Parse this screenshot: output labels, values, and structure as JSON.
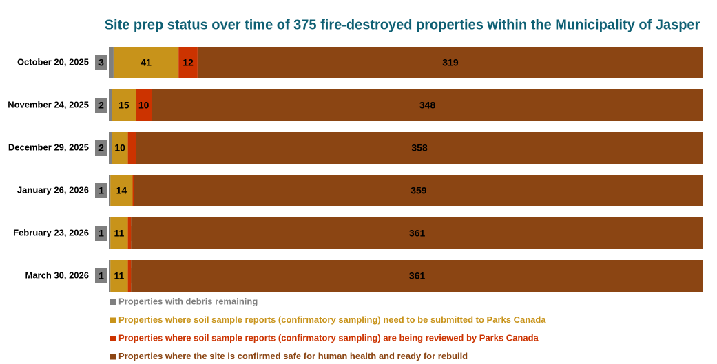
{
  "chart_data": {
    "type": "stacked-bar-horizontal",
    "title": "Site prep status over time of 375 fire-destroyed properties within the Municipality of Jasper",
    "categories": [
      "October 20, 2025",
      "November 24, 2025",
      "December 29, 2025",
      "January 26, 2026",
      "February 23, 2026",
      "March 30, 2026"
    ],
    "series": [
      {
        "name": "Properties with debris remaining",
        "color": "#7f7f7f",
        "values": [
          3,
          2,
          2,
          1,
          1,
          1
        ]
      },
      {
        "name": "Properties where soil sample reports (confirmatory sampling) need to be submitted to Parks Canada",
        "color": "#c8931a",
        "values": [
          41,
          15,
          10,
          14,
          11,
          11
        ]
      },
      {
        "name": "Properties where soil sample reports (confirmatory sampling) are being reviewed by Parks Canada",
        "color": "#cc3300",
        "values": [
          12,
          10,
          5,
          1,
          2,
          2
        ]
      },
      {
        "name": "Properties where the site is confirmed safe for human health and ready for rebuild",
        "color": "#8b4513",
        "values": [
          319,
          348,
          358,
          359,
          361,
          361
        ]
      }
    ],
    "xlim": [
      0,
      375
    ]
  }
}
